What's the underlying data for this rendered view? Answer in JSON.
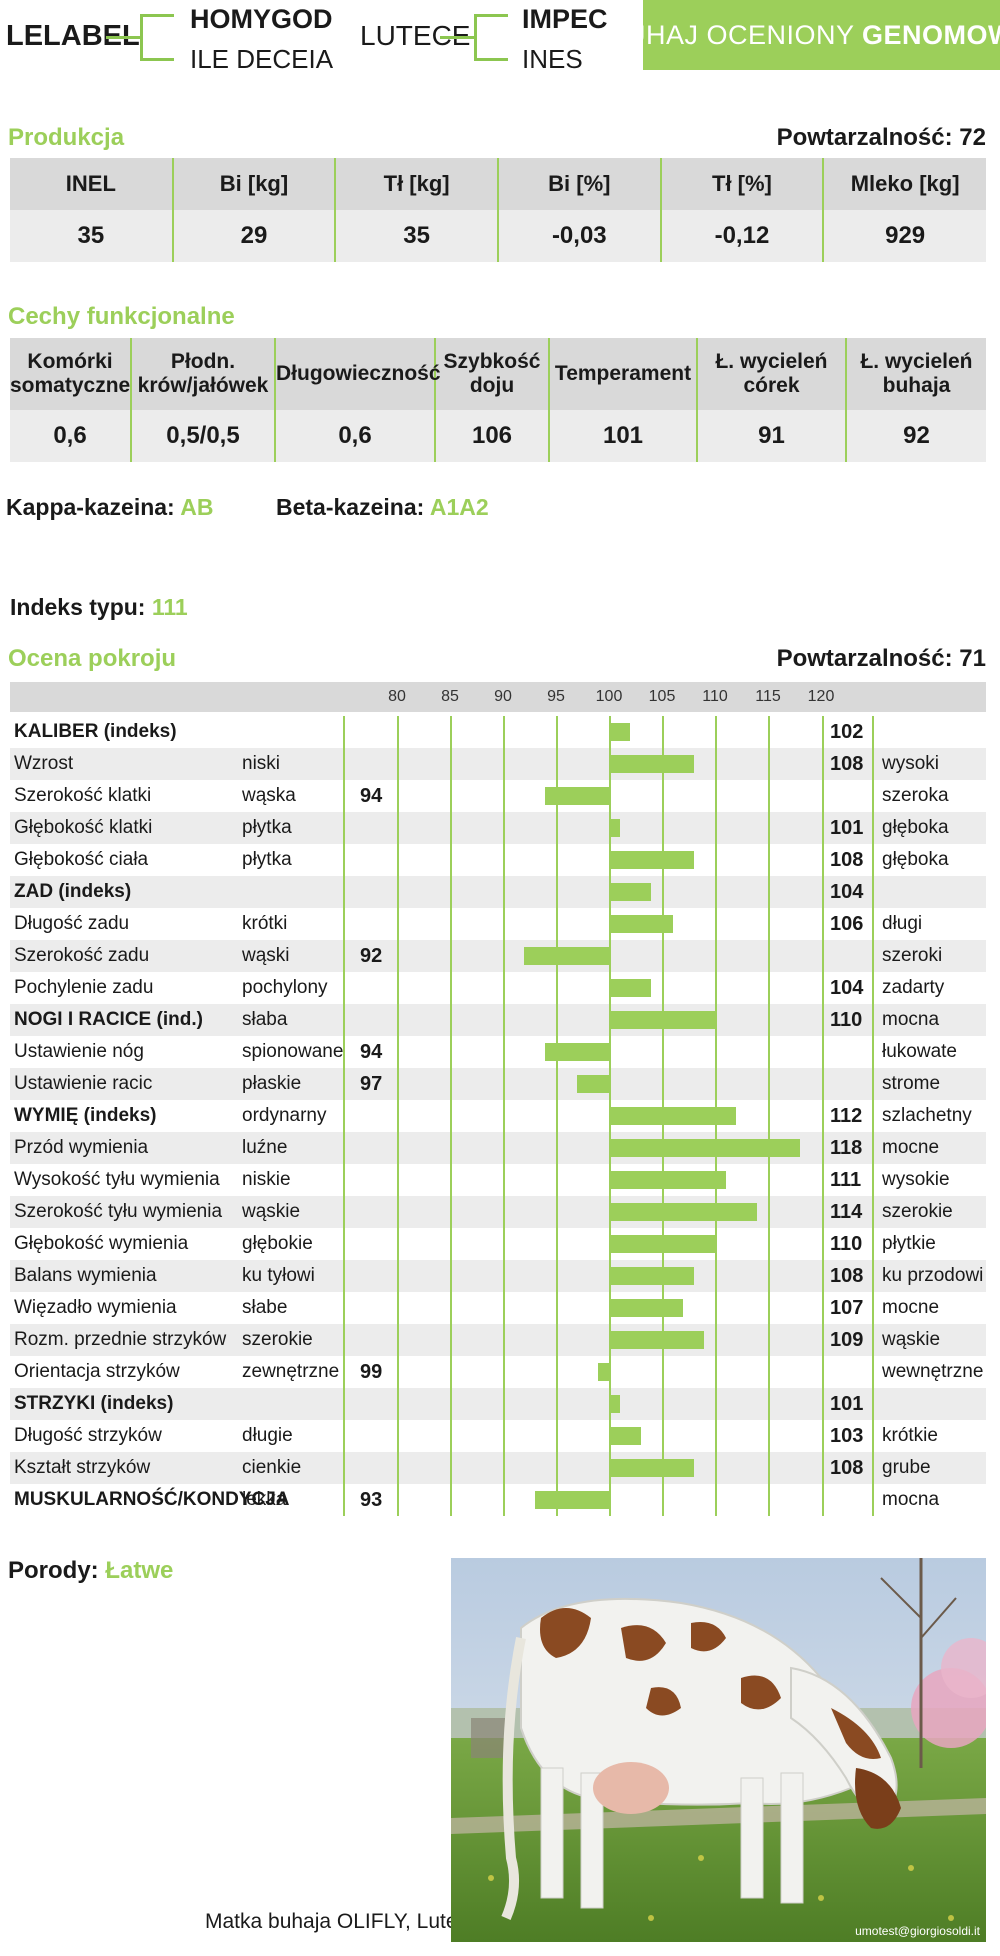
{
  "pedigree": {
    "bull": "LELABEL",
    "sire": "HOMYGOD",
    "sire_dam": "ILE DECEIA",
    "dam": "LUTECE",
    "dam_sire": "IMPEC",
    "dam_dam": "INES"
  },
  "badge": {
    "text": "BUHAJ OCENIONY ",
    "strong": "GENOMOWO"
  },
  "production": {
    "title": "Produkcja",
    "reliability_label": "Powtarzalność:",
    "reliability": "72",
    "headers": [
      "INEL",
      "Bi [kg]",
      "Tł [kg]",
      "Bi [%]",
      "Tł [%]",
      "Mleko [kg]"
    ],
    "values": [
      "35",
      "29",
      "35",
      "-0,03",
      "-0,12",
      "929"
    ]
  },
  "functional": {
    "title": "Cechy funkcjonalne",
    "headers": [
      [
        "Komórki",
        "somatyczne"
      ],
      [
        "Płodn.",
        "krów/jałówek"
      ],
      [
        "Długowieczność",
        ""
      ],
      [
        "Szybkość",
        "doju"
      ],
      [
        "Temperament",
        ""
      ],
      [
        "Ł. wycieleń",
        "córek"
      ],
      [
        "Ł. wycieleń",
        "buhaja"
      ]
    ],
    "values": [
      "0,6",
      "0,5/0,5",
      "0,6",
      "106",
      "101",
      "91",
      "92"
    ]
  },
  "caseins": {
    "kappa_label": "Kappa-kazeina:",
    "kappa": "AB",
    "beta_label": "Beta-kazeina:",
    "beta": "A1A2"
  },
  "type_index": {
    "label": "Indeks typu:",
    "value": "111"
  },
  "conformation": {
    "title": "Ocena pokroju",
    "reliability_label": "Powtarzalność:",
    "reliability": "71"
  },
  "chart_data": {
    "type": "bar",
    "orientation": "horizontal",
    "baseline": 100,
    "xlim": [
      80,
      120
    ],
    "xticks": [
      "80",
      "85",
      "90",
      "95",
      "100",
      "105",
      "110",
      "115",
      "120"
    ],
    "rows": [
      {
        "trait": "KALIBER (indeks)",
        "low": "",
        "value": 102,
        "high": "",
        "bold": true
      },
      {
        "trait": "Wzrost",
        "low": "niski",
        "value": 108,
        "high": "wysoki",
        "bold": false
      },
      {
        "trait": "Szerokość klatki",
        "low": "wąska",
        "value": 94,
        "high": "szeroka",
        "bold": false
      },
      {
        "trait": "Głębokość klatki",
        "low": "płytka",
        "value": 101,
        "high": "głęboka",
        "bold": false
      },
      {
        "trait": "Głębokość ciała",
        "low": "płytka",
        "value": 108,
        "high": "głęboka",
        "bold": false
      },
      {
        "trait": "ZAD (indeks)",
        "low": "",
        "value": 104,
        "high": "",
        "bold": true
      },
      {
        "trait": "Długość zadu",
        "low": "krótki",
        "value": 106,
        "high": "długi",
        "bold": false
      },
      {
        "trait": "Szerokość zadu",
        "low": "wąski",
        "value": 92,
        "high": "szeroki",
        "bold": false
      },
      {
        "trait": "Pochylenie zadu",
        "low": "pochylony",
        "value": 104,
        "high": "zadarty",
        "bold": false
      },
      {
        "trait": "NOGI I RACICE (ind.)",
        "low": "słaba",
        "value": 110,
        "high": "mocna",
        "bold": true
      },
      {
        "trait": "Ustawienie nóg",
        "low": "spionowane",
        "value": 94,
        "high": "łukowate",
        "bold": false
      },
      {
        "trait": "Ustawienie racic",
        "low": "płaskie",
        "value": 97,
        "high": "strome",
        "bold": false
      },
      {
        "trait": "WYMIĘ (indeks)",
        "low": "ordynarny",
        "value": 112,
        "high": "szlachetny",
        "bold": true
      },
      {
        "trait": "Przód wymienia",
        "low": "luźne",
        "value": 118,
        "high": "mocne",
        "bold": false
      },
      {
        "trait": "Wysokość tyłu wymienia",
        "low": "niskie",
        "value": 111,
        "high": "wysokie",
        "bold": false
      },
      {
        "trait": "Szerokość tyłu wymienia",
        "low": "wąskie",
        "value": 114,
        "high": "szerokie",
        "bold": false
      },
      {
        "trait": "Głębokość wymienia",
        "low": "głębokie",
        "value": 110,
        "high": "płytkie",
        "bold": false
      },
      {
        "trait": "Balans wymienia",
        "low": "ku tyłowi",
        "value": 108,
        "high": "ku przodowi",
        "bold": false
      },
      {
        "trait": "Więzadło wymienia",
        "low": "słabe",
        "value": 107,
        "high": "mocne",
        "bold": false
      },
      {
        "trait": "Rozm. przednie strzyków",
        "low": "szerokie",
        "value": 109,
        "high": "wąskie",
        "bold": false
      },
      {
        "trait": "Orientacja strzyków",
        "low": "zewnętrzne",
        "value": 99,
        "high": "wewnętrzne",
        "bold": false
      },
      {
        "trait": "STRZYKI (indeks)",
        "low": "",
        "value": 101,
        "high": "",
        "bold": true
      },
      {
        "trait": "Długość strzyków",
        "low": "długie",
        "value": 103,
        "high": "krótkie",
        "bold": false
      },
      {
        "trait": "Kształt strzyków",
        "low": "cienkie",
        "value": 108,
        "high": "grube",
        "bold": false
      },
      {
        "trait": "MUSKULARNOŚĆ/KONDYCJA",
        "low": "lekka",
        "value": 93,
        "high": "mocna",
        "bold": true
      }
    ]
  },
  "calving": {
    "label": "Porody:",
    "value": "Łatwe"
  },
  "photo": {
    "caption": "Matka buhaja OLIFLY, Lutece",
    "watermark": "umotest@giorgiosoldi.it",
    "colors": {
      "sky": "#c9d6e6",
      "grass": "#6c9a3a",
      "cow_white": "#f2f2ef",
      "cow_patch": "#8a4a22",
      "blossom": "#e8a6c0"
    }
  }
}
